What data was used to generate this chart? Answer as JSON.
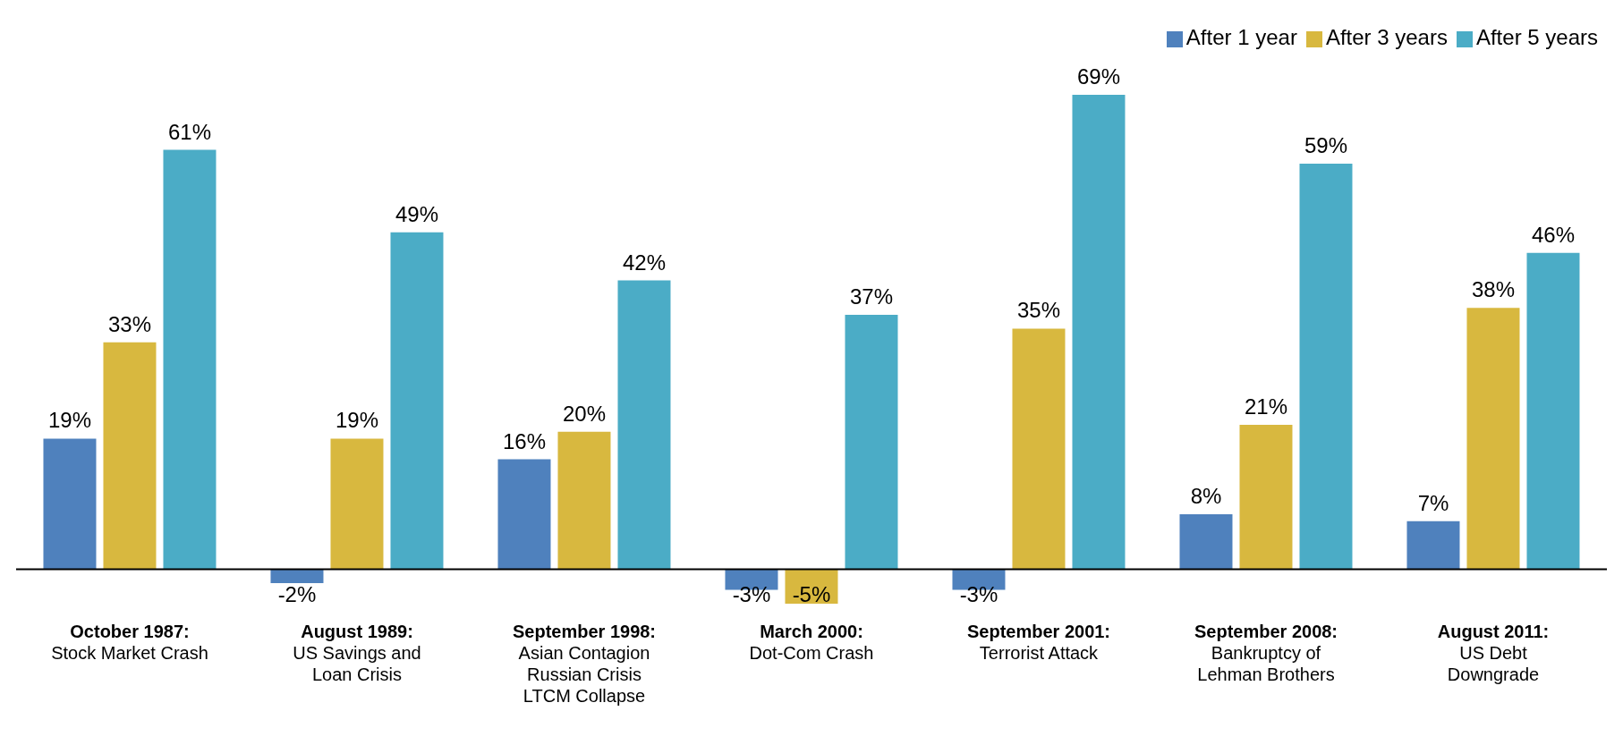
{
  "chart_data": {
    "type": "bar",
    "categories": [
      "October 1987:\nStock Market Crash",
      "August 1989:\nUS Savings and\nLoan Crisis",
      "September 1998:\nAsian Contagion\nRussian Crisis\nLTCM Collapse",
      "March 2000:\nDot-Com Crash",
      "September 2001:\nTerrorist Attack",
      "September 2008:\nBankruptcy of\nLehman Brothers",
      "August 2011:\nUS Debt\nDowngrade"
    ],
    "series": [
      {
        "name": "After 1 year",
        "color": "#4f81bd",
        "values": [
          19,
          -2,
          16,
          -3,
          -3,
          8,
          7
        ],
        "value_labels": [
          "19%",
          "-2%",
          "16%",
          "-3%",
          "-3%",
          "8%",
          "7%"
        ]
      },
      {
        "name": "After 3 years",
        "color": "#d8b83f",
        "values": [
          33,
          19,
          20,
          -5,
          35,
          21,
          38
        ],
        "value_labels": [
          "33%",
          "19%",
          "20%",
          "-5%",
          "35%",
          "21%",
          "38%"
        ]
      },
      {
        "name": "After 5 years",
        "color": "#4bacc6",
        "values": [
          61,
          49,
          42,
          37,
          69,
          59,
          46
        ],
        "value_labels": [
          "61%",
          "49%",
          "42%",
          "37%",
          "69%",
          "59%",
          "46%"
        ]
      }
    ],
    "legend": "top right"
  }
}
